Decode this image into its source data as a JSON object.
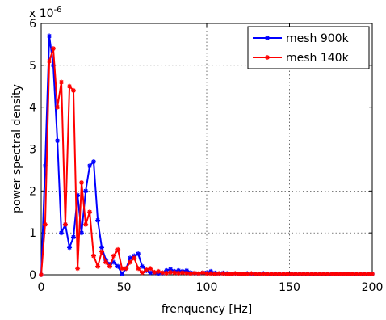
{
  "chart_data": {
    "type": "line",
    "title": "",
    "xlabel": "frenquency [Hz]",
    "ylabel": "power spectral density",
    "y_exponent_label": "x 10",
    "y_exponent_power": "-6",
    "xlim": [
      0,
      200
    ],
    "ylim": [
      0,
      6
    ],
    "x_ticks": [
      "0",
      "50",
      "100",
      "150",
      "200"
    ],
    "y_ticks": [
      "0",
      "1",
      "2",
      "3",
      "4",
      "5",
      "6"
    ],
    "grid": true,
    "legend_position": "top-right",
    "series": [
      {
        "name": "mesh 900k",
        "color": "#0000ff",
        "x": [
          0,
          2.4,
          4.9,
          7.3,
          9.8,
          12.2,
          14.6,
          17.1,
          19.5,
          22.0,
          24.4,
          26.9,
          29.3,
          31.7,
          34.2,
          36.6,
          39.1,
          41.5,
          43.9,
          46.4,
          48.8,
          51.3,
          53.7,
          56.2,
          58.6,
          61.0,
          63.5,
          65.9,
          68.4,
          70.8,
          73.2,
          75.7,
          78.1,
          80.6,
          83.0,
          85.4,
          87.9,
          90.3,
          92.8,
          95.2,
          97.7,
          100.1,
          102.5,
          105.0,
          107.4,
          109.9,
          112.3,
          114.7,
          117.2,
          119.6,
          122.1,
          124.5,
          127.0,
          129.4,
          131.8,
          134.3,
          136.7,
          139.2,
          141.6,
          144.0,
          146.5,
          148.9,
          151.4,
          153.8,
          156.3,
          158.7,
          161.1,
          163.6,
          166.0,
          168.5,
          170.9,
          173.3,
          175.8,
          178.2,
          180.7,
          183.1,
          185.5,
          188.0,
          190.4,
          192.9,
          195.3,
          197.8,
          200.0
        ],
        "values": [
          0.0,
          2.6,
          5.7,
          5.0,
          3.2,
          1.0,
          1.2,
          0.65,
          0.9,
          1.9,
          1.0,
          2.0,
          2.6,
          2.7,
          1.3,
          0.65,
          0.35,
          0.25,
          0.3,
          0.2,
          0.02,
          0.15,
          0.4,
          0.45,
          0.5,
          0.2,
          0.1,
          0.05,
          0.05,
          0.03,
          0.04,
          0.1,
          0.13,
          0.08,
          0.1,
          0.08,
          0.1,
          0.05,
          0.04,
          0.03,
          0.05,
          0.05,
          0.08,
          0.04,
          0.03,
          0.04,
          0.03,
          0.02,
          0.03,
          0.02,
          0.02,
          0.03,
          0.02,
          0.02,
          0.02,
          0.03,
          0.02,
          0.02,
          0.02,
          0.02,
          0.02,
          0.02,
          0.02,
          0.02,
          0.02,
          0.02,
          0.02,
          0.02,
          0.02,
          0.02,
          0.02,
          0.02,
          0.02,
          0.02,
          0.02,
          0.02,
          0.02,
          0.02,
          0.02,
          0.02,
          0.02,
          0.02,
          0.02
        ]
      },
      {
        "name": "mesh 140k",
        "color": "#ff0000",
        "x": [
          0,
          2.4,
          4.9,
          7.3,
          9.8,
          12.2,
          14.6,
          17.1,
          19.5,
          22.0,
          24.4,
          26.9,
          29.3,
          31.7,
          34.2,
          36.6,
          39.1,
          41.5,
          43.9,
          46.4,
          48.8,
          51.3,
          53.7,
          56.2,
          58.6,
          61.0,
          63.5,
          65.9,
          68.4,
          70.8,
          73.2,
          75.7,
          78.1,
          80.6,
          83.0,
          85.4,
          87.9,
          90.3,
          92.8,
          95.2,
          97.7,
          100.1,
          102.5,
          105.0,
          107.4,
          109.9,
          112.3,
          114.7,
          117.2,
          119.6,
          122.1,
          124.5,
          127.0,
          129.4,
          131.8,
          134.3,
          136.7,
          139.2,
          141.6,
          144.0,
          146.5,
          148.9,
          151.4,
          153.8,
          156.3,
          158.7,
          161.1,
          163.6,
          166.0,
          168.5,
          170.9,
          173.3,
          175.8,
          178.2,
          180.7,
          183.1,
          185.5,
          188.0,
          190.4,
          192.9,
          195.3,
          197.8,
          200.0
        ],
        "values": [
          0.0,
          1.2,
          5.1,
          5.4,
          4.0,
          4.6,
          1.2,
          4.5,
          4.4,
          0.15,
          2.2,
          1.2,
          1.5,
          0.45,
          0.2,
          0.55,
          0.3,
          0.2,
          0.45,
          0.6,
          0.15,
          0.15,
          0.3,
          0.4,
          0.15,
          0.05,
          0.12,
          0.15,
          0.06,
          0.08,
          0.05,
          0.04,
          0.06,
          0.05,
          0.04,
          0.05,
          0.04,
          0.03,
          0.04,
          0.03,
          0.05,
          0.03,
          0.03,
          0.02,
          0.03,
          0.03,
          0.02,
          0.02,
          0.03,
          0.02,
          0.02,
          0.02,
          0.03,
          0.02,
          0.02,
          0.02,
          0.02,
          0.02,
          0.02,
          0.02,
          0.02,
          0.02,
          0.02,
          0.02,
          0.02,
          0.02,
          0.02,
          0.02,
          0.02,
          0.02,
          0.02,
          0.02,
          0.02,
          0.02,
          0.02,
          0.02,
          0.02,
          0.02,
          0.02,
          0.02,
          0.02,
          0.02,
          0.02
        ]
      }
    ]
  }
}
